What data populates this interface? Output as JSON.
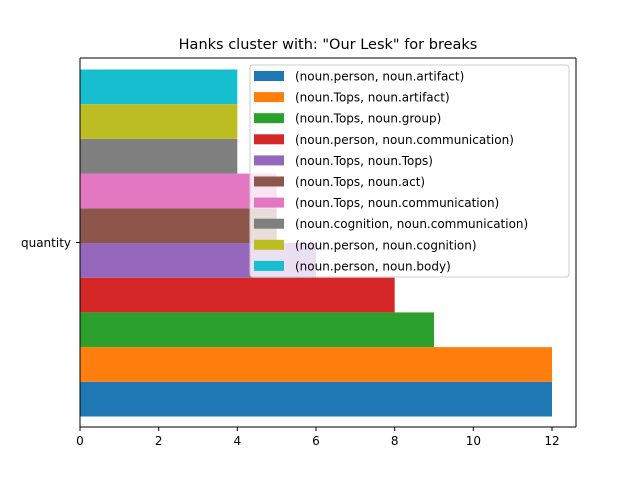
{
  "chart_data": {
    "type": "bar",
    "orientation": "horizontal",
    "title": "Hanks cluster with: \"Our Lesk\" for breaks",
    "category": "quantity",
    "xlim": [
      0,
      12.6
    ],
    "x_ticks": [
      0,
      2,
      4,
      6,
      8,
      10,
      12
    ],
    "xlabel": "",
    "ylabel": "",
    "grid": false,
    "legend_position": "upper-right",
    "series": [
      {
        "name": "(noun.person, noun.artifact)",
        "value": 12,
        "color": "#1f77b4"
      },
      {
        "name": "(noun.Tops, noun.artifact)",
        "value": 12,
        "color": "#ff7f0e"
      },
      {
        "name": "(noun.Tops, noun.group)",
        "value": 9,
        "color": "#2ca02c"
      },
      {
        "name": "(noun.person, noun.communication)",
        "value": 8,
        "color": "#d62728"
      },
      {
        "name": "(noun.Tops, noun.Tops)",
        "value": 6,
        "color": "#9467bd"
      },
      {
        "name": "(noun.Tops, noun.act)",
        "value": 5,
        "color": "#8c564b"
      },
      {
        "name": "(noun.Tops, noun.communication)",
        "value": 5,
        "color": "#e377c2"
      },
      {
        "name": "(noun.cognition, noun.communication)",
        "value": 4,
        "color": "#7f7f7f"
      },
      {
        "name": "(noun.person, noun.cognition)",
        "value": 4,
        "color": "#bcbd22"
      },
      {
        "name": "(noun.person, noun.body)",
        "value": 4,
        "color": "#17becf"
      }
    ]
  }
}
